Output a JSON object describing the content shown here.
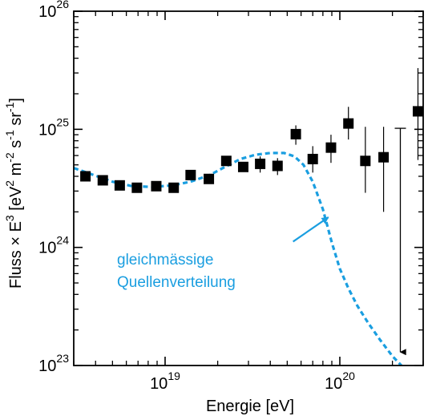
{
  "chart_data": {
    "type": "scatter",
    "title": "",
    "xlabel": "Energie [eV]",
    "ylabel_parts": [
      "Fluss × E",
      "3",
      " [eV",
      "2",
      " m",
      "-2",
      " s",
      "-1",
      " sr",
      "-1",
      "]"
    ],
    "x_scale": "log",
    "y_scale": "log",
    "xlim": [
      3e+18,
      3e+20
    ],
    "ylim": [
      1e+23,
      1e+26
    ],
    "x_ticks": [
      {
        "value": 1e+19,
        "base": "10",
        "exp": "19"
      },
      {
        "value": 1e+20,
        "base": "10",
        "exp": "20"
      }
    ],
    "y_ticks": [
      {
        "value": 1e+23,
        "base": "10",
        "exp": "23"
      },
      {
        "value": 1e+24,
        "base": "10",
        "exp": "24"
      },
      {
        "value": 1e+25,
        "base": "10",
        "exp": "25"
      },
      {
        "value": 1e+26,
        "base": "10",
        "exp": "26"
      }
    ],
    "grid": false,
    "series": [
      {
        "type": "scatter",
        "marker": "square",
        "color": "#000000",
        "points": [
          {
            "x": 3.5e+18,
            "y": 4e+24
          },
          {
            "x": 4.4e+18,
            "y": 3.7e+24
          },
          {
            "x": 5.5e+18,
            "y": 3.35e+24
          },
          {
            "x": 6.9e+18,
            "y": 3.2e+24
          },
          {
            "x": 8.9e+18,
            "y": 3.3e+24
          },
          {
            "x": 1.12e+19,
            "y": 3.2e+24
          },
          {
            "x": 1.4e+19,
            "y": 4.1e+24
          },
          {
            "x": 1.78e+19,
            "y": 3.8e+24
          },
          {
            "x": 2.24e+19,
            "y": 5.4e+24
          },
          {
            "x": 2.8e+19,
            "y": 4.8e+24
          },
          {
            "x": 3.5e+19,
            "y": 5.1e+24,
            "yerr": [
              4.3e+24,
              5.9e+24
            ]
          },
          {
            "x": 4.4e+19,
            "y": 4.9e+24,
            "yerr": [
              4.1e+24,
              5.7e+24
            ]
          },
          {
            "x": 5.6e+19,
            "y": 9.1e+24,
            "yerr": [
              7.4e+24,
              1.08e+25
            ]
          },
          {
            "x": 7e+19,
            "y": 5.6e+24,
            "yerr": [
              4.3e+24,
              7.2e+24
            ]
          },
          {
            "x": 8.9e+19,
            "y": 7e+24,
            "yerr": [
              5.2e+24,
              9e+24
            ]
          },
          {
            "x": 1.12e+20,
            "y": 1.12e+25,
            "yerr": [
              8.2e+24,
              1.55e+25
            ]
          },
          {
            "x": 1.4e+20,
            "y": 5.4e+24,
            "yerr": [
              2.9e+24,
              1.05e+25
            ]
          },
          {
            "x": 1.78e+20,
            "y": 5.8e+24,
            "yerr": [
              2e+24,
              1.05e+25
            ]
          },
          {
            "x": 2.8e+20,
            "y": 1.42e+25,
            "yerr": [
              5.5e+24,
              3.3e+25
            ]
          }
        ],
        "upper_limits": [
          {
            "x": 2.22e+20,
            "y": 1.02e+25,
            "arrow_to": 1.3e+23
          }
        ]
      },
      {
        "type": "line",
        "style": "dashed",
        "color": "#1a9ee0",
        "points": [
          {
            "x": 3e+18,
            "y": 4.7e+24
          },
          {
            "x": 4e+18,
            "y": 4.05e+24
          },
          {
            "x": 5e+18,
            "y": 3.6e+24
          },
          {
            "x": 6.5e+18,
            "y": 3.3e+24
          },
          {
            "x": 8.5e+18,
            "y": 3.25e+24
          },
          {
            "x": 1.1e+19,
            "y": 3.35e+24
          },
          {
            "x": 1.4e+19,
            "y": 3.6e+24
          },
          {
            "x": 1.8e+19,
            "y": 4.1e+24
          },
          {
            "x": 2.2e+19,
            "y": 4.8e+24
          },
          {
            "x": 2.7e+19,
            "y": 5.6e+24
          },
          {
            "x": 3.3e+19,
            "y": 6.1e+24
          },
          {
            "x": 4e+19,
            "y": 6.3e+24
          },
          {
            "x": 4.8e+19,
            "y": 6.3e+24
          },
          {
            "x": 5.5e+19,
            "y": 5.9e+24
          },
          {
            "x": 6.2e+19,
            "y": 5e+24
          },
          {
            "x": 7e+19,
            "y": 3.6e+24
          },
          {
            "x": 8e+19,
            "y": 2.1e+24
          },
          {
            "x": 9e+19,
            "y": 1.1e+24
          },
          {
            "x": 1e+20,
            "y": 6.6e+23
          },
          {
            "x": 1.12e+20,
            "y": 4.5e+23
          },
          {
            "x": 1.26e+20,
            "y": 3.2e+23
          },
          {
            "x": 1.45e+20,
            "y": 2.3e+23
          },
          {
            "x": 1.7e+20,
            "y": 1.65e+23
          },
          {
            "x": 2e+20,
            "y": 1.2e+23
          },
          {
            "x": 2.25e+20,
            "y": 1e+23
          }
        ]
      }
    ],
    "annotation": {
      "lines": [
        "gleichmässige",
        "Quellenverteilung"
      ],
      "color": "#1a9ee0",
      "arrow_from": {
        "x": 5.4e+19,
        "y": 1.12e+24
      },
      "arrow_to": {
        "x": 8.6e+19,
        "y": 1.8e+24
      }
    }
  }
}
